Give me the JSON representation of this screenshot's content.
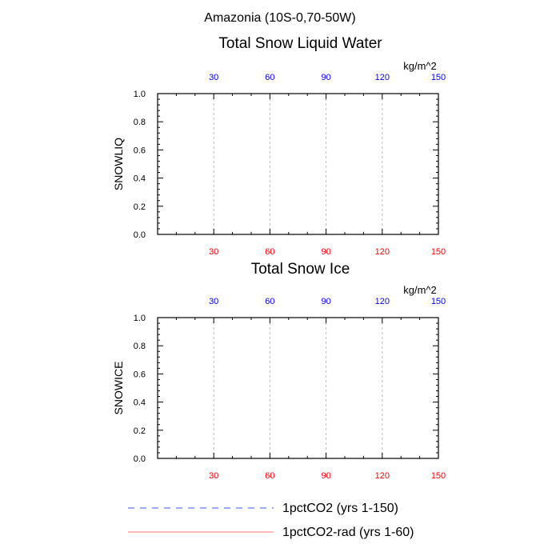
{
  "figure": {
    "title": "Amazonia (10S-0,70-50W)"
  },
  "colors": {
    "bottom_axis_ticks": "#ff0000",
    "top_axis_ticks": "#0000ff",
    "gridline": "#bbbbbb",
    "series_1pctCO2": "#3355ff",
    "series_1pctCO2_rad": "#ff7777"
  },
  "legend": {
    "items": [
      {
        "label": "1pctCO2 (yrs 1-150)",
        "style": "dashed",
        "color": "#3355ff"
      },
      {
        "label": "1pctCO2-rad (yrs 1-60)",
        "style": "solid",
        "color": "#ff7777"
      }
    ]
  },
  "chart_data": [
    {
      "type": "line",
      "title": "Total Snow Liquid Water",
      "ylabel": "SNOWLIQ",
      "units": "kg/m^2",
      "xlim": [
        0,
        150
      ],
      "ylim": [
        0,
        1.0
      ],
      "xticks_bottom": [
        30,
        60,
        90,
        120,
        150
      ],
      "xticks_top": [
        30,
        60,
        90,
        120,
        150
      ],
      "yticks": [
        0.0,
        0.2,
        0.4,
        0.6,
        0.8,
        1.0
      ],
      "ytick_labels": [
        "0.0",
        "0.2",
        "0.4",
        "0.6",
        "0.8",
        "1.0"
      ],
      "grid_x": true,
      "series": [
        {
          "name": "1pctCO2 (yrs 1-150)",
          "x": [
            0,
            150
          ],
          "y": [
            0,
            0
          ]
        },
        {
          "name": "1pctCO2-rad (yrs 1-60)",
          "x": [
            0,
            60
          ],
          "y": [
            0,
            0
          ]
        }
      ]
    },
    {
      "type": "line",
      "title": "Total Snow Ice",
      "ylabel": "SNOWICE",
      "units": "kg/m^2",
      "xlim": [
        0,
        150
      ],
      "ylim": [
        0,
        1.0
      ],
      "xticks_bottom": [
        30,
        60,
        90,
        120,
        150
      ],
      "xticks_top": [
        30,
        60,
        90,
        120,
        150
      ],
      "yticks": [
        0.0,
        0.2,
        0.4,
        0.6,
        0.8,
        1.0
      ],
      "ytick_labels": [
        "0.0",
        "0.2",
        "0.4",
        "0.6",
        "0.8",
        "1.0"
      ],
      "grid_x": true,
      "series": [
        {
          "name": "1pctCO2 (yrs 1-150)",
          "x": [
            0,
            150
          ],
          "y": [
            0,
            0
          ]
        },
        {
          "name": "1pctCO2-rad (yrs 1-60)",
          "x": [
            0,
            60
          ],
          "y": [
            0,
            0
          ]
        }
      ]
    }
  ]
}
